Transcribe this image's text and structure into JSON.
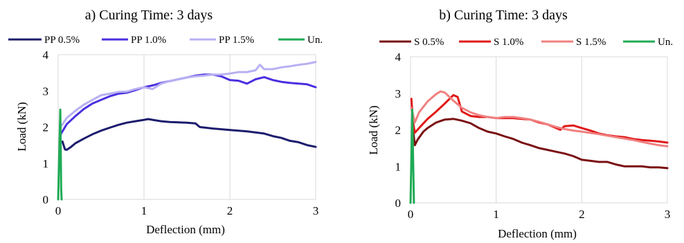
{
  "chart_data": [
    {
      "type": "line",
      "title": "a) Curing Time: 3 days",
      "xlabel": "Deflection (mm)",
      "ylabel": "Load (kN)",
      "xlim": [
        0,
        3
      ],
      "ylim": [
        0,
        4
      ],
      "xticks": [
        "0",
        "1",
        "2",
        "3"
      ],
      "yticks": [
        "0",
        "1",
        "2",
        "3",
        "4"
      ],
      "grid": "vertical",
      "legend": "top",
      "series": [
        {
          "name": "PP 0.5%",
          "color": "#1c1c6e",
          "points": [
            [
              0.05,
              1.6
            ],
            [
              0.08,
              1.38
            ],
            [
              0.1,
              1.37
            ],
            [
              0.15,
              1.45
            ],
            [
              0.2,
              1.55
            ],
            [
              0.3,
              1.68
            ],
            [
              0.4,
              1.8
            ],
            [
              0.5,
              1.9
            ],
            [
              0.6,
              1.98
            ],
            [
              0.7,
              2.06
            ],
            [
              0.8,
              2.12
            ],
            [
              0.9,
              2.16
            ],
            [
              1.0,
              2.2
            ],
            [
              1.05,
              2.22
            ],
            [
              1.1,
              2.2
            ],
            [
              1.2,
              2.16
            ],
            [
              1.3,
              2.14
            ],
            [
              1.4,
              2.13
            ],
            [
              1.5,
              2.12
            ],
            [
              1.6,
              2.1
            ],
            [
              1.65,
              2.0
            ],
            [
              1.8,
              1.96
            ],
            [
              2.0,
              1.92
            ],
            [
              2.2,
              1.88
            ],
            [
              2.4,
              1.82
            ],
            [
              2.5,
              1.75
            ],
            [
              2.6,
              1.7
            ],
            [
              2.7,
              1.62
            ],
            [
              2.8,
              1.58
            ],
            [
              2.9,
              1.5
            ],
            [
              3.0,
              1.45
            ]
          ]
        },
        {
          "name": "PP 1.0%",
          "color": "#4a2fe0",
          "points": [
            [
              0.03,
              1.8
            ],
            [
              0.1,
              2.08
            ],
            [
              0.2,
              2.3
            ],
            [
              0.3,
              2.5
            ],
            [
              0.4,
              2.65
            ],
            [
              0.5,
              2.75
            ],
            [
              0.6,
              2.85
            ],
            [
              0.7,
              2.92
            ],
            [
              0.8,
              2.95
            ],
            [
              0.9,
              3.02
            ],
            [
              1.0,
              3.1
            ],
            [
              1.1,
              3.15
            ],
            [
              1.2,
              3.22
            ],
            [
              1.3,
              3.27
            ],
            [
              1.4,
              3.32
            ],
            [
              1.5,
              3.37
            ],
            [
              1.6,
              3.42
            ],
            [
              1.7,
              3.45
            ],
            [
              1.8,
              3.45
            ],
            [
              1.9,
              3.4
            ],
            [
              2.0,
              3.3
            ],
            [
              2.1,
              3.28
            ],
            [
              2.2,
              3.2
            ],
            [
              2.3,
              3.32
            ],
            [
              2.4,
              3.38
            ],
            [
              2.5,
              3.3
            ],
            [
              2.6,
              3.25
            ],
            [
              2.7,
              3.22
            ],
            [
              2.8,
              3.2
            ],
            [
              2.9,
              3.18
            ],
            [
              3.0,
              3.1
            ]
          ]
        },
        {
          "name": "PP 1.5%",
          "color": "#b7b0f2",
          "points": [
            [
              0.03,
              2.0
            ],
            [
              0.1,
              2.25
            ],
            [
              0.2,
              2.45
            ],
            [
              0.3,
              2.62
            ],
            [
              0.4,
              2.75
            ],
            [
              0.5,
              2.88
            ],
            [
              0.6,
              2.92
            ],
            [
              0.7,
              2.97
            ],
            [
              0.8,
              2.98
            ],
            [
              0.9,
              3.05
            ],
            [
              1.0,
              3.1
            ],
            [
              1.1,
              3.05
            ],
            [
              1.2,
              3.2
            ],
            [
              1.3,
              3.27
            ],
            [
              1.4,
              3.32
            ],
            [
              1.5,
              3.37
            ],
            [
              1.6,
              3.4
            ],
            [
              1.7,
              3.42
            ],
            [
              1.8,
              3.45
            ],
            [
              1.9,
              3.45
            ],
            [
              2.0,
              3.48
            ],
            [
              2.1,
              3.52
            ],
            [
              2.2,
              3.52
            ],
            [
              2.3,
              3.57
            ],
            [
              2.35,
              3.72
            ],
            [
              2.4,
              3.6
            ],
            [
              2.5,
              3.6
            ],
            [
              2.6,
              3.65
            ],
            [
              2.7,
              3.68
            ],
            [
              2.8,
              3.72
            ],
            [
              2.9,
              3.75
            ],
            [
              3.0,
              3.8
            ]
          ]
        },
        {
          "name": "Un.",
          "color": "#1faa55",
          "points": [
            [
              0.0,
              0.0
            ],
            [
              0.01,
              1.0
            ],
            [
              0.02,
              2.0
            ],
            [
              0.025,
              2.48
            ],
            [
              0.03,
              1.5
            ],
            [
              0.035,
              0.3
            ],
            [
              0.04,
              0.0
            ]
          ]
        }
      ]
    },
    {
      "type": "line",
      "title": "b) Curing Time: 3 days",
      "xlabel": "Deflection (mm)",
      "ylabel": "Load (kN)",
      "xlim": [
        0,
        3
      ],
      "ylim": [
        0,
        4
      ],
      "xticks": [
        "0",
        "1",
        "2",
        "3"
      ],
      "yticks": [
        "0",
        "1",
        "2",
        "3",
        "4"
      ],
      "grid": "vertical",
      "legend": "top",
      "series": [
        {
          "name": "S 0.5%",
          "color": "#7a0f12",
          "points": [
            [
              0.02,
              2.2
            ],
            [
              0.05,
              1.58
            ],
            [
              0.08,
              1.72
            ],
            [
              0.15,
              1.95
            ],
            [
              0.2,
              2.05
            ],
            [
              0.3,
              2.2
            ],
            [
              0.4,
              2.28
            ],
            [
              0.5,
              2.3
            ],
            [
              0.6,
              2.25
            ],
            [
              0.7,
              2.18
            ],
            [
              0.8,
              2.05
            ],
            [
              0.9,
              1.95
            ],
            [
              1.0,
              1.9
            ],
            [
              1.1,
              1.82
            ],
            [
              1.2,
              1.75
            ],
            [
              1.3,
              1.65
            ],
            [
              1.4,
              1.58
            ],
            [
              1.5,
              1.5
            ],
            [
              1.6,
              1.45
            ],
            [
              1.7,
              1.4
            ],
            [
              1.8,
              1.35
            ],
            [
              1.9,
              1.28
            ],
            [
              2.0,
              1.18
            ],
            [
              2.1,
              1.15
            ],
            [
              2.2,
              1.12
            ],
            [
              2.3,
              1.12
            ],
            [
              2.4,
              1.05
            ],
            [
              2.5,
              1.0
            ],
            [
              2.6,
              1.0
            ],
            [
              2.7,
              1.0
            ],
            [
              2.8,
              0.97
            ],
            [
              2.9,
              0.97
            ],
            [
              3.0,
              0.95
            ]
          ]
        },
        {
          "name": "S 1.0%",
          "color": "#e01818",
          "points": [
            [
              0.01,
              2.85
            ],
            [
              0.03,
              2.2
            ],
            [
              0.05,
              1.92
            ],
            [
              0.1,
              2.05
            ],
            [
              0.2,
              2.3
            ],
            [
              0.3,
              2.5
            ],
            [
              0.4,
              2.72
            ],
            [
              0.5,
              2.95
            ],
            [
              0.55,
              2.9
            ],
            [
              0.6,
              2.5
            ],
            [
              0.7,
              2.38
            ],
            [
              0.8,
              2.35
            ],
            [
              0.9,
              2.35
            ],
            [
              1.0,
              2.32
            ],
            [
              1.1,
              2.32
            ],
            [
              1.2,
              2.32
            ],
            [
              1.3,
              2.3
            ],
            [
              1.4,
              2.28
            ],
            [
              1.5,
              2.2
            ],
            [
              1.6,
              2.15
            ],
            [
              1.7,
              2.05
            ],
            [
              1.75,
              2.0
            ],
            [
              1.8,
              2.1
            ],
            [
              1.9,
              2.12
            ],
            [
              2.0,
              2.05
            ],
            [
              2.1,
              1.98
            ],
            [
              2.2,
              1.9
            ],
            [
              2.3,
              1.85
            ],
            [
              2.4,
              1.82
            ],
            [
              2.5,
              1.8
            ],
            [
              2.6,
              1.75
            ],
            [
              2.7,
              1.72
            ],
            [
              2.8,
              1.7
            ],
            [
              2.9,
              1.68
            ],
            [
              3.0,
              1.65
            ]
          ]
        },
        {
          "name": "S 1.5%",
          "color": "#f08080",
          "points": [
            [
              0.01,
              2.6
            ],
            [
              0.05,
              2.2
            ],
            [
              0.1,
              2.48
            ],
            [
              0.2,
              2.78
            ],
            [
              0.3,
              2.98
            ],
            [
              0.35,
              3.05
            ],
            [
              0.4,
              3.02
            ],
            [
              0.5,
              2.8
            ],
            [
              0.6,
              2.6
            ],
            [
              0.7,
              2.48
            ],
            [
              0.8,
              2.4
            ],
            [
              0.9,
              2.35
            ],
            [
              1.0,
              2.32
            ],
            [
              1.1,
              2.35
            ],
            [
              1.2,
              2.35
            ],
            [
              1.3,
              2.32
            ],
            [
              1.4,
              2.28
            ],
            [
              1.5,
              2.22
            ],
            [
              1.6,
              2.15
            ],
            [
              1.7,
              2.08
            ],
            [
              1.8,
              2.02
            ],
            [
              1.9,
              1.98
            ],
            [
              2.0,
              1.95
            ],
            [
              2.2,
              1.88
            ],
            [
              2.4,
              1.8
            ],
            [
              2.6,
              1.72
            ],
            [
              2.8,
              1.62
            ],
            [
              2.9,
              1.58
            ],
            [
              3.0,
              1.55
            ]
          ]
        },
        {
          "name": "Un.",
          "color": "#1faa55",
          "points": [
            [
              0.0,
              0.0
            ],
            [
              0.01,
              1.2
            ],
            [
              0.02,
              2.55
            ],
            [
              0.03,
              1.2
            ],
            [
              0.04,
              0.0
            ]
          ]
        }
      ]
    }
  ]
}
